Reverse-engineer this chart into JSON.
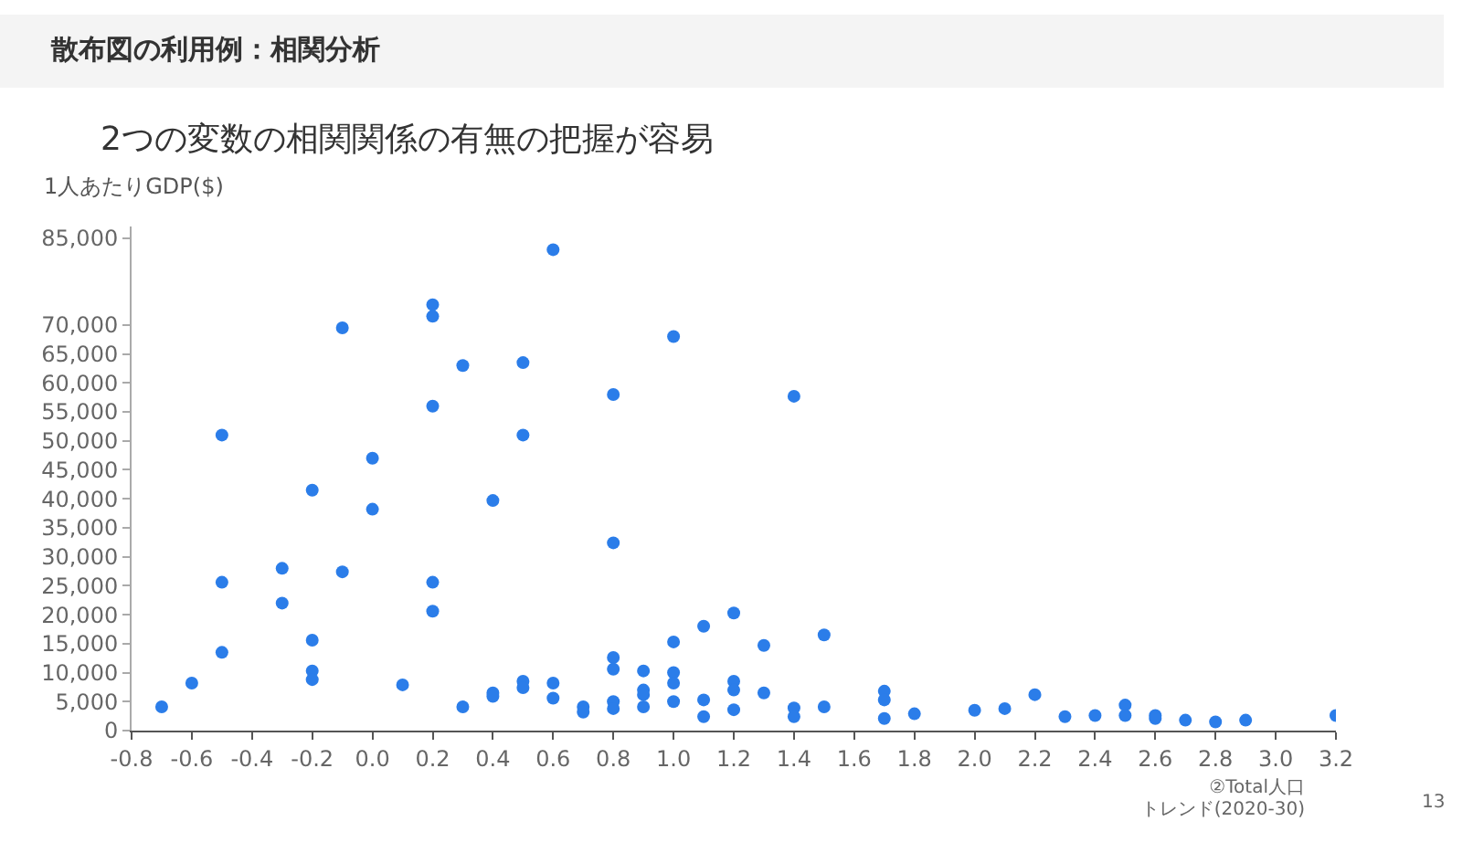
{
  "chart_data": {
    "type": "scatter",
    "title": "散布図の利用例：相関分析",
    "subtitle": "2つの変数の相関関係の有無の把握が容易",
    "ylabel": "1人あたりGDP($)",
    "annotations": [
      "②Total人口",
      "トレンド(2020-30)",
      "13"
    ],
    "series": [
      {
        "color": "#2b7de9",
        "x": [
          -0.7,
          -0.6,
          -0.5,
          -0.5,
          -0.5,
          -0.3,
          -0.3,
          -0.2,
          -0.2,
          -0.2,
          -0.2,
          -0.1,
          -0.1,
          0,
          0,
          0.1,
          0.2,
          0.2,
          0.2,
          0.2,
          0.2,
          0.3,
          0.3,
          0.4,
          0.4,
          0.4,
          0.5,
          0.5,
          0.5,
          0.5,
          0.6,
          0.6,
          0.6,
          0.7,
          0.7,
          0.8,
          0.8,
          0.8,
          0.8,
          0.8,
          0.8,
          0.9,
          0.9,
          0.9,
          0.9,
          1.0,
          1.0,
          1.0,
          1.0,
          1.0,
          1.1,
          1.1,
          1.1,
          1.2,
          1.2,
          1.2,
          1.2,
          1.3,
          1.3,
          1.4,
          1.4,
          1.4,
          1.5,
          1.5,
          1.7,
          1.7,
          1.7,
          1.8,
          2.0,
          2.1,
          2.2,
          2.3,
          2.4,
          2.5,
          2.5,
          2.6,
          2.6,
          2.7,
          2.8,
          2.9,
          3.2
        ],
        "values": [
          4100,
          8200,
          51000,
          25600,
          13500,
          28000,
          22000,
          41500,
          15600,
          10300,
          8800,
          69500,
          27400,
          47000,
          38200,
          7900,
          73500,
          71500,
          56000,
          25600,
          20600,
          63000,
          4100,
          39700,
          6500,
          5900,
          63500,
          51000,
          8500,
          7400,
          83000,
          8200,
          5600,
          4100,
          3200,
          58000,
          32400,
          12600,
          10600,
          5000,
          3800,
          10300,
          7000,
          6200,
          4100,
          68000,
          15300,
          10000,
          8200,
          5000,
          18000,
          5300,
          2400,
          20300,
          8500,
          7000,
          3600,
          14700,
          6500,
          57700,
          3900,
          2400,
          16500,
          4100,
          6800,
          5300,
          2100,
          2900,
          3500,
          3800,
          6200,
          2400,
          2600,
          4400,
          2600,
          2600,
          2100,
          1800,
          1500,
          1800,
          2600
        ]
      }
    ],
    "marker": "circle",
    "xlim": [
      -0.8,
      3.2
    ],
    "xticks": [
      -0.8,
      -0.6,
      -0.4,
      -0.2,
      {
        "value": 0,
        "label": "0.0"
      },
      0.2,
      0.4,
      0.6,
      0.8,
      {
        "value": 1,
        "label": "1.0"
      },
      1.2,
      1.4,
      1.6,
      1.8,
      {
        "value": 2,
        "label": "2.0"
      },
      2.2,
      2.4,
      2.6,
      2.8,
      {
        "value": 3,
        "label": "3.0"
      },
      3.2
    ],
    "ylim": [
      0,
      87000
    ],
    "yticks": [
      0,
      {
        "value": 5000,
        "label": "5,000"
      },
      {
        "value": 10000,
        "label": "10,000"
      },
      {
        "value": 15000,
        "label": "15,000"
      },
      {
        "value": 20000,
        "label": "20,000"
      },
      {
        "value": 25000,
        "label": "25,000"
      },
      {
        "value": 30000,
        "label": "30,000"
      },
      {
        "value": 35000,
        "label": "35,000"
      },
      {
        "value": 40000,
        "label": "40,000"
      },
      {
        "value": 45000,
        "label": "45,000"
      },
      {
        "value": 50000,
        "label": "50,000"
      },
      {
        "value": 55000,
        "label": "55,000"
      },
      {
        "value": 60000,
        "label": "60,000"
      },
      {
        "value": 65000,
        "label": "65,000"
      },
      {
        "value": 70000,
        "label": "70,000"
      },
      {
        "value": 85000,
        "label": "85,000"
      }
    ],
    "grid": false
  }
}
